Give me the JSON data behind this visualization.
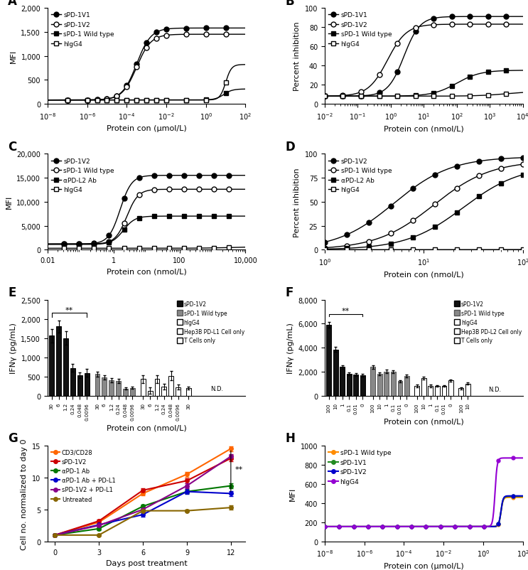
{
  "panel_A": {
    "xlabel": "Protein con (μmol/L)",
    "ylabel": "MFI",
    "ylim": [
      0,
      2000
    ],
    "yticks": [
      0,
      500,
      1000,
      1500,
      2000
    ],
    "xlim_log": [
      -8,
      2
    ],
    "series": [
      {
        "label": "sPD-1V1",
        "marker": "o",
        "fill": true,
        "ec50_log": -3.5,
        "bottom": 80,
        "top": 1580,
        "hill": 1.2
      },
      {
        "label": "sPD-1V2",
        "marker": "o",
        "fill": false,
        "ec50_log": -3.5,
        "bottom": 80,
        "top": 1450,
        "hill": 1.2
      },
      {
        "label": "sPD-1 Wild type",
        "marker": "s",
        "fill": true,
        "ec50_log": 0.9,
        "bottom": 80,
        "top": 310,
        "hill": 2.0
      },
      {
        "label": "hIgG4",
        "marker": "s",
        "fill": false,
        "ec50_log": 1.0,
        "bottom": 80,
        "top": 820,
        "hill": 3.0
      }
    ]
  },
  "panel_B": {
    "xlabel": "Protein con (nmol/L)",
    "ylabel": "Percent inhibition",
    "ylim": [
      0,
      100
    ],
    "yticks": [
      0,
      20,
      40,
      60,
      80,
      100
    ],
    "xlim_log": [
      -2,
      4
    ],
    "series": [
      {
        "label": "sPD-1V1",
        "marker": "o",
        "fill": true,
        "ec50_log": 0.4,
        "bottom": 8,
        "top": 91,
        "hill": 1.8
      },
      {
        "label": "sPD-1V2",
        "marker": "o",
        "fill": false,
        "ec50_log": -0.1,
        "bottom": 8,
        "top": 83,
        "hill": 1.5
      },
      {
        "label": "sPD-1 Wild type",
        "marker": "s",
        "fill": true,
        "ec50_log": 2.0,
        "bottom": 8,
        "top": 35,
        "hill": 1.2
      },
      {
        "label": "hIgG4",
        "marker": "s",
        "fill": false,
        "ec50_log": 3.5,
        "bottom": 8,
        "top": 13,
        "hill": 1.0
      }
    ]
  },
  "panel_C": {
    "xlabel": "Protein con (nmol/L)",
    "ylabel": "MFI",
    "ylim": [
      0,
      20000
    ],
    "yticks": [
      0,
      5000,
      10000,
      15000,
      20000
    ],
    "xlim_log": [
      -2,
      4
    ],
    "xticks_vals": [
      0.01,
      1,
      100,
      10000
    ],
    "xticks_labels": [
      "0.01",
      "1",
      "100",
      "10,000"
    ],
    "series": [
      {
        "label": "sPD-1V2",
        "marker": "o",
        "fill": true,
        "ec50_log": 0.2,
        "bottom": 1200,
        "top": 15500,
        "hill": 2.5
      },
      {
        "label": "sPD-1 Wild type",
        "marker": "o",
        "fill": false,
        "ec50_log": 0.4,
        "bottom": 1200,
        "top": 12600,
        "hill": 2.5
      },
      {
        "label": "αPD-L2 Ab",
        "marker": "s",
        "fill": true,
        "ec50_log": 0.3,
        "bottom": 1100,
        "top": 7000,
        "hill": 2.5
      },
      {
        "label": "hIgG4",
        "marker": "s",
        "fill": false,
        "ec50_log": 3.5,
        "bottom": 300,
        "top": 600,
        "hill": 1.0
      }
    ]
  },
  "panel_D": {
    "xlabel": "Protein con (nmol/L)",
    "ylabel": "Percent inhibition",
    "ylim": [
      0,
      100
    ],
    "yticks": [
      0,
      25,
      50,
      75,
      100
    ],
    "xlim_log": [
      0,
      2
    ],
    "series": [
      {
        "label": "sPD-1V2",
        "marker": "o",
        "fill": true,
        "ec50_log": 0.7,
        "bottom": 0,
        "top": 97,
        "hill": 1.5
      },
      {
        "label": "sPD-1 Wild type",
        "marker": "o",
        "fill": false,
        "ec50_log": 1.1,
        "bottom": 0,
        "top": 93,
        "hill": 1.5
      },
      {
        "label": "αPD-L2 Ab",
        "marker": "s",
        "fill": true,
        "ec50_log": 1.4,
        "bottom": 0,
        "top": 88,
        "hill": 1.5
      },
      {
        "label": "hIgG4",
        "marker": "s",
        "fill": false,
        "ec50_log": 3.0,
        "bottom": 0,
        "top": 2,
        "hill": 1.0
      }
    ]
  },
  "panel_E": {
    "xlabel": "Protein con (nmol/L)",
    "ylabel": "IFNγ (pg/mL)",
    "ylim": [
      0,
      2500
    ],
    "yticks": [
      0,
      500,
      1000,
      1500,
      2000,
      2500
    ],
    "significance": "**",
    "sig_x1": 0,
    "sig_x2": 5,
    "sig_y": 2200,
    "groups": [
      {
        "label": "sPD-1V2",
        "color": "#111111",
        "ec": "#000000",
        "concs": [
          "30",
          "6",
          "1.2",
          "0.24",
          "0.048",
          "0.0096"
        ],
        "vals": [
          1560,
          1800,
          1500,
          720,
          530,
          590
        ],
        "errs": [
          180,
          160,
          170,
          100,
          80,
          100
        ]
      },
      {
        "label": "sPD-1 Wild type",
        "color": "#888888",
        "ec": "#555555",
        "concs": [
          "30",
          "6",
          "1.2",
          "0.24",
          "0.048",
          "0.0096"
        ],
        "vals": [
          560,
          470,
          400,
          380,
          180,
          200
        ],
        "errs": [
          60,
          55,
          50,
          50,
          30,
          30
        ]
      },
      {
        "label": "hIgG4",
        "color": "#ffffff",
        "ec": "#000000",
        "concs": [
          "30",
          "6",
          "1.2",
          "0.24",
          "0.048",
          "0.0096"
        ],
        "vals": [
          430,
          130,
          430,
          230,
          520,
          220
        ],
        "errs": [
          100,
          80,
          100,
          80,
          120,
          60
        ]
      },
      {
        "label": "Hep3B PD-L1 Cell only",
        "color": "#ffffff",
        "ec": "#000000",
        "concs": [
          "30"
        ],
        "vals": [
          200
        ],
        "errs": [
          40
        ]
      },
      {
        "label": "T Cells only",
        "color": "#ffffff",
        "ec": "#000000",
        "concs": [],
        "vals": [],
        "errs": [],
        "nd": true
      }
    ]
  },
  "panel_F": {
    "xlabel": "Protein con (nmol/L)",
    "ylabel": "IFNγ (pg/mL)",
    "ylim": [
      0,
      8000
    ],
    "yticks": [
      0,
      2000,
      4000,
      6000,
      8000
    ],
    "significance": "**",
    "sig_x1": 0,
    "sig_x2": 5,
    "sig_y": 7000,
    "groups": [
      {
        "label": "sPD-1V2",
        "color": "#111111",
        "ec": "#000000",
        "concs": [
          "100",
          "10",
          "1",
          "0.1",
          "0.01",
          "0"
        ],
        "vals": [
          5900,
          3850,
          2400,
          1800,
          1750,
          1700
        ],
        "errs": [
          250,
          200,
          150,
          130,
          120,
          110
        ]
      },
      {
        "label": "sPD-1 Wild type",
        "color": "#888888",
        "ec": "#555555",
        "concs": [
          "100",
          "10",
          "1",
          "0.1",
          "0.01",
          "0"
        ],
        "vals": [
          2400,
          1800,
          2000,
          2000,
          1200,
          1650
        ],
        "errs": [
          150,
          120,
          140,
          130,
          100,
          120
        ]
      },
      {
        "label": "hIgG4",
        "color": "#ffffff",
        "ec": "#000000",
        "concs": [
          "100",
          "10",
          "1",
          "0.1",
          "0.01",
          "0"
        ],
        "vals": [
          800,
          1450,
          800,
          800,
          800,
          1250
        ],
        "errs": [
          100,
          120,
          100,
          80,
          80,
          100
        ]
      },
      {
        "label": "Hep3B PD-L2 Cell only",
        "color": "#ffffff",
        "ec": "#000000",
        "concs": [
          "100",
          "10"
        ],
        "vals": [
          600,
          1000
        ],
        "errs": [
          80,
          100
        ]
      },
      {
        "label": "T Cells only",
        "color": "#ffffff",
        "ec": "#000000",
        "concs": [],
        "vals": [],
        "errs": [],
        "nd": true
      }
    ]
  },
  "panel_G": {
    "xlabel": "Days post treatment",
    "ylabel": "Cell no. normalized to day 0",
    "ylim": [
      0,
      15
    ],
    "yticks": [
      0,
      5,
      10,
      15
    ],
    "significance": "**",
    "series": [
      {
        "label": "CD3/CD28",
        "color": "#FF6600",
        "days": [
          0,
          3,
          6,
          9,
          12
        ],
        "vals": [
          1.0,
          3.0,
          7.5,
          10.5,
          14.5
        ],
        "errs": [
          0.05,
          0.2,
          0.3,
          0.4,
          0.4
        ]
      },
      {
        "label": "sPD-1V2",
        "color": "#CC0000",
        "days": [
          0,
          3,
          6,
          9,
          12
        ],
        "vals": [
          1.0,
          3.2,
          8.0,
          9.5,
          13.0
        ],
        "errs": [
          0.05,
          0.2,
          0.3,
          0.4,
          0.5
        ]
      },
      {
        "label": "αPD-1 Ab",
        "color": "#007700",
        "days": [
          0,
          3,
          6,
          9,
          12
        ],
        "vals": [
          1.0,
          2.0,
          5.5,
          7.8,
          8.7
        ],
        "errs": [
          0.05,
          0.2,
          0.3,
          0.3,
          0.4
        ]
      },
      {
        "label": "αPD-1 Ab + PD-L1",
        "color": "#0000CC",
        "days": [
          0,
          3,
          6,
          9,
          12
        ],
        "vals": [
          1.0,
          2.6,
          4.2,
          7.8,
          7.5
        ],
        "errs": [
          0.05,
          0.2,
          0.3,
          0.4,
          0.4
        ]
      },
      {
        "label": "sPD-1V2 + PD-L1",
        "color": "#880088",
        "days": [
          0,
          3,
          6,
          9,
          12
        ],
        "vals": [
          1.0,
          2.5,
          5.0,
          8.7,
          13.3
        ],
        "errs": [
          0.05,
          0.2,
          0.3,
          0.4,
          0.4
        ]
      },
      {
        "label": "Untreated",
        "color": "#886600",
        "days": [
          0,
          3,
          6,
          9,
          12
        ],
        "vals": [
          1.0,
          1.0,
          4.8,
          4.8,
          5.3
        ],
        "errs": [
          0.05,
          0.1,
          0.2,
          0.2,
          0.3
        ]
      }
    ]
  },
  "panel_H": {
    "xlabel": "Protein con (μmol/L)",
    "ylabel": "MFI",
    "ylim": [
      0,
      1000
    ],
    "yticks": [
      0,
      200,
      400,
      600,
      800,
      1000
    ],
    "xlim_log": [
      -8,
      2
    ],
    "series": [
      {
        "label": "sPD-1 Wild type",
        "color": "#FF8C00",
        "ec50_log": 0.9,
        "bottom": 155,
        "top": 460,
        "hill": 8.0
      },
      {
        "label": "sPD-1V1",
        "color": "#228B22",
        "ec50_log": 0.9,
        "bottom": 155,
        "top": 470,
        "hill": 8.0
      },
      {
        "label": "sPD-1V2",
        "color": "#0000CD",
        "ec50_log": 0.9,
        "bottom": 155,
        "top": 475,
        "hill": 8.0
      },
      {
        "label": "hIgG4",
        "color": "#9400D3",
        "ec50_log": 0.6,
        "bottom": 155,
        "top": 870,
        "hill": 8.0
      }
    ]
  }
}
